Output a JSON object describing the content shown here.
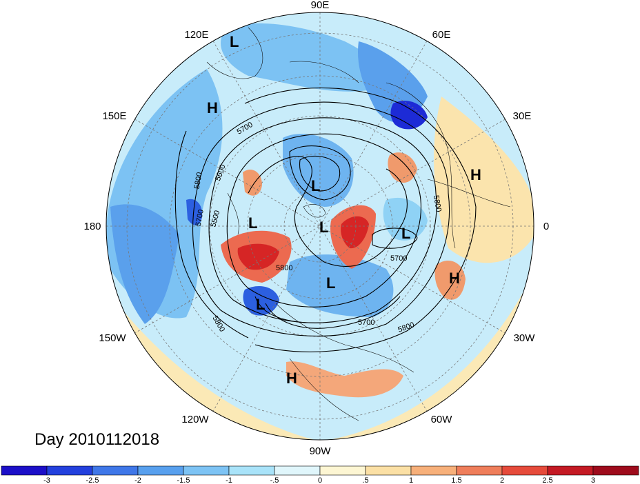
{
  "map": {
    "projection": "polar stereographic, north pole",
    "graticule_style": "dashed gray",
    "longitude_labels": [
      "90E",
      "60E",
      "30E",
      "0",
      "30W",
      "60W",
      "90W",
      "120W",
      "150W",
      "180",
      "150E",
      "120E"
    ],
    "contour_labels": [
      "5700",
      "5600",
      "5500",
      "5800",
      "5800",
      "5700",
      "5800",
      "5700",
      "5800",
      "5700",
      "5800"
    ],
    "pressure_centers": [
      {
        "type": "L"
      },
      {
        "type": "H"
      },
      {
        "type": "L"
      },
      {
        "type": "L"
      },
      {
        "type": "L"
      },
      {
        "type": "L"
      },
      {
        "type": "L"
      },
      {
        "type": "L"
      },
      {
        "type": "H"
      },
      {
        "type": "H"
      },
      {
        "type": "H"
      }
    ],
    "anomaly_regions": [
      {
        "sign": "negative",
        "colour": "#1d2bd6"
      },
      {
        "sign": "negative",
        "colour": "#2c5fe0"
      },
      {
        "sign": "positive",
        "colour": "#d62525"
      },
      {
        "sign": "positive",
        "colour": "#ec6a50"
      }
    ]
  },
  "title": {
    "text": "Day 2010112018"
  },
  "colorbar": {
    "colors": [
      "#1c0fc8",
      "#2340dd",
      "#3f77e8",
      "#58a0ee",
      "#7dc3f4",
      "#a9e3f9",
      "#e0f6fb",
      "#fdf6d3",
      "#fbe0a5",
      "#f7b07a",
      "#ef7e5b",
      "#e64b3b",
      "#c41a24",
      "#9e0b1c"
    ],
    "tick_labels": [
      "-3",
      "-2.5",
      "-2",
      "-1.5",
      "-1",
      "-.5",
      "0",
      ".5",
      "1",
      "1.5",
      "2",
      "2.5",
      "3"
    ]
  }
}
